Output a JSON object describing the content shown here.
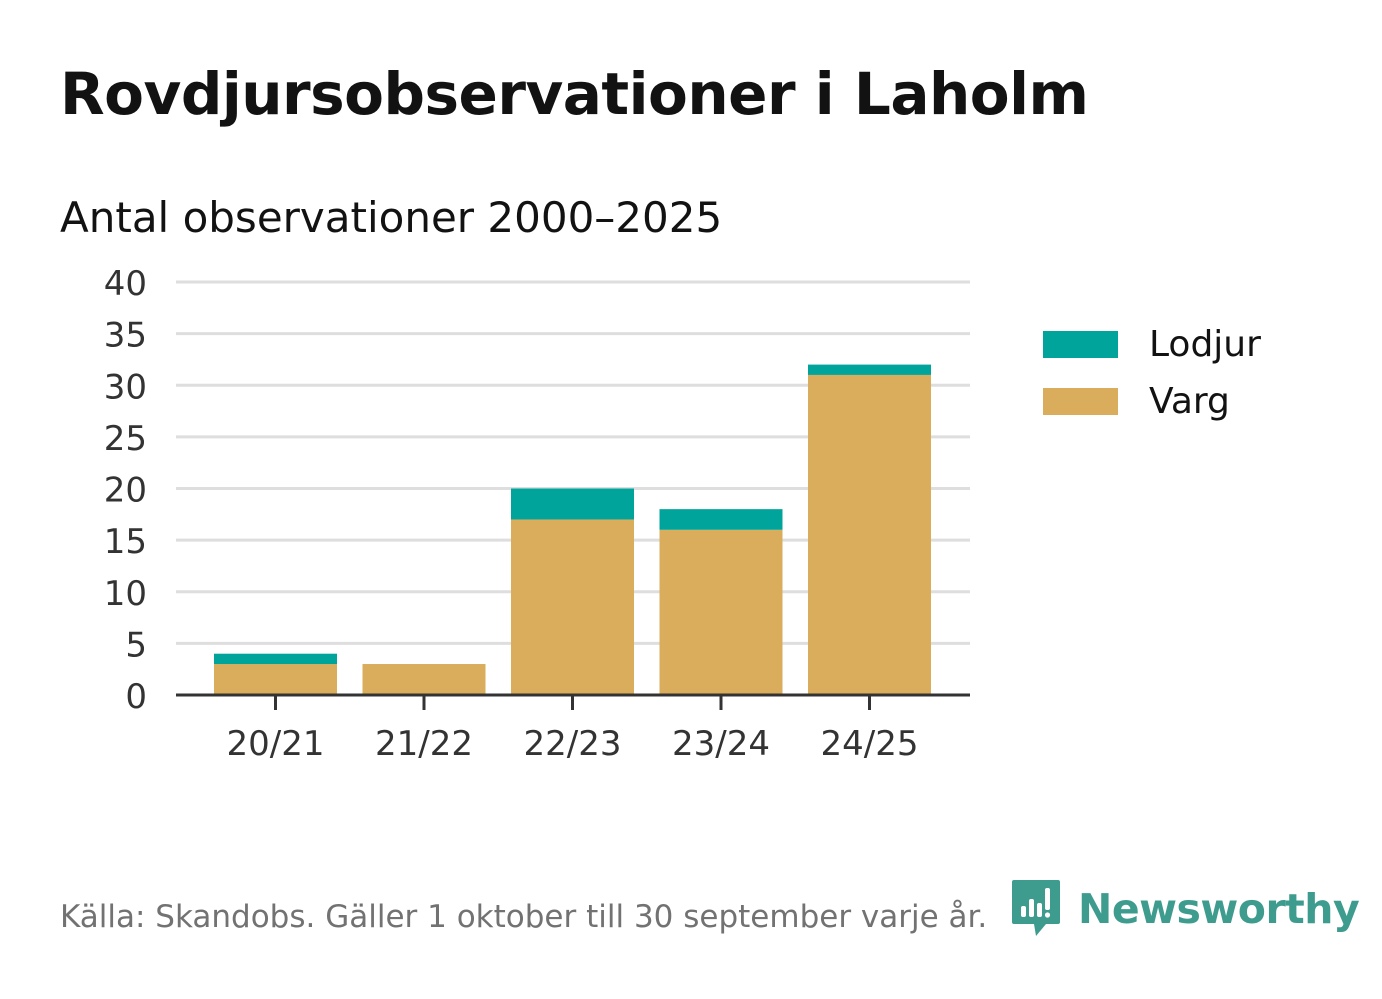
{
  "header": {
    "title": "Rovdjursobservationer i Laholm",
    "subtitle": "Antal observationer 2000–2025"
  },
  "chart_data": {
    "type": "bar",
    "stacked": true,
    "categories": [
      "20/21",
      "21/22",
      "22/23",
      "23/24",
      "24/25"
    ],
    "series": [
      {
        "name": "Varg",
        "color": "#d9ad5b",
        "values": [
          3,
          3,
          17,
          16,
          31
        ]
      },
      {
        "name": "Lodjur",
        "color": "#00a49a",
        "values": [
          1,
          0,
          3,
          2,
          1
        ]
      }
    ],
    "legend_order": [
      "Lodjur",
      "Varg"
    ],
    "ylim": [
      0,
      40
    ],
    "yticks": [
      0,
      5,
      10,
      15,
      20,
      25,
      30,
      35,
      40
    ],
    "xlabel": "",
    "ylabel": "",
    "grid": true,
    "legend_position": "right"
  },
  "footer": {
    "source": "Källa: Skandobs. Gäller 1 oktober till 30 september varje år.",
    "brand": "Newsworthy",
    "brand_icon": "bar-chart-speech-bubble-icon"
  }
}
